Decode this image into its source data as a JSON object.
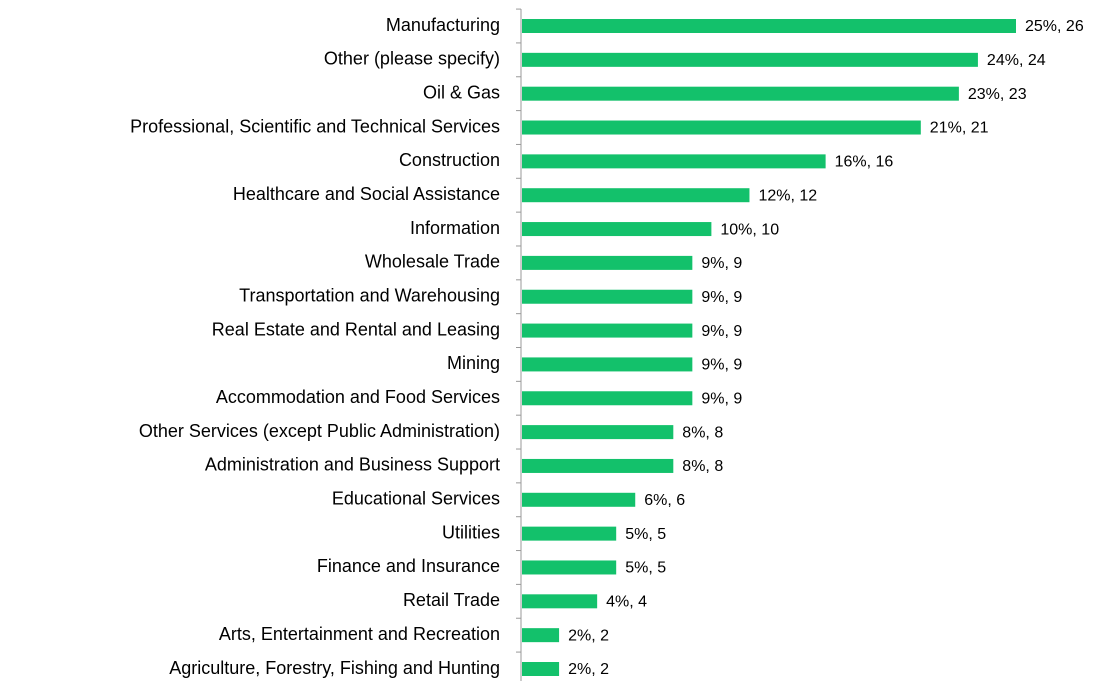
{
  "chart_data": {
    "type": "barh",
    "categories": [
      "Manufacturing",
      "Other (please specify)",
      "Oil & Gas",
      "Professional, Scientific and Technical Services",
      "Construction",
      "Healthcare and Social Assistance",
      "Information",
      "Wholesale Trade",
      "Transportation and Warehousing",
      "Real Estate and Rental and Leasing",
      "Mining",
      "Accommodation and Food Services",
      "Other Services (except Public Administration)",
      "Administration and Business Support",
      "Educational Services",
      "Utilities",
      "Finance and Insurance",
      "Retail Trade",
      "Arts, Entertainment and Recreation",
      "Agriculture, Forestry, Fishing and Hunting"
    ],
    "values": [
      26,
      24,
      23,
      21,
      16,
      12,
      10,
      9,
      9,
      9,
      9,
      9,
      8,
      8,
      6,
      5,
      5,
      4,
      2,
      2
    ],
    "value_labels": [
      "25%, 26",
      "24%, 24",
      "23%, 23",
      "21%, 21",
      "16%, 16",
      "12%, 12",
      "10%, 10",
      "9%, 9",
      "9%, 9",
      "9%, 9",
      "9%, 9",
      "9%, 9",
      "8%, 8",
      "8%, 8",
      "6%, 6",
      "5%, 5",
      "5%, 5",
      "4%, 4",
      "2%, 2",
      "2%, 2"
    ],
    "color": "#13c16b"
  }
}
